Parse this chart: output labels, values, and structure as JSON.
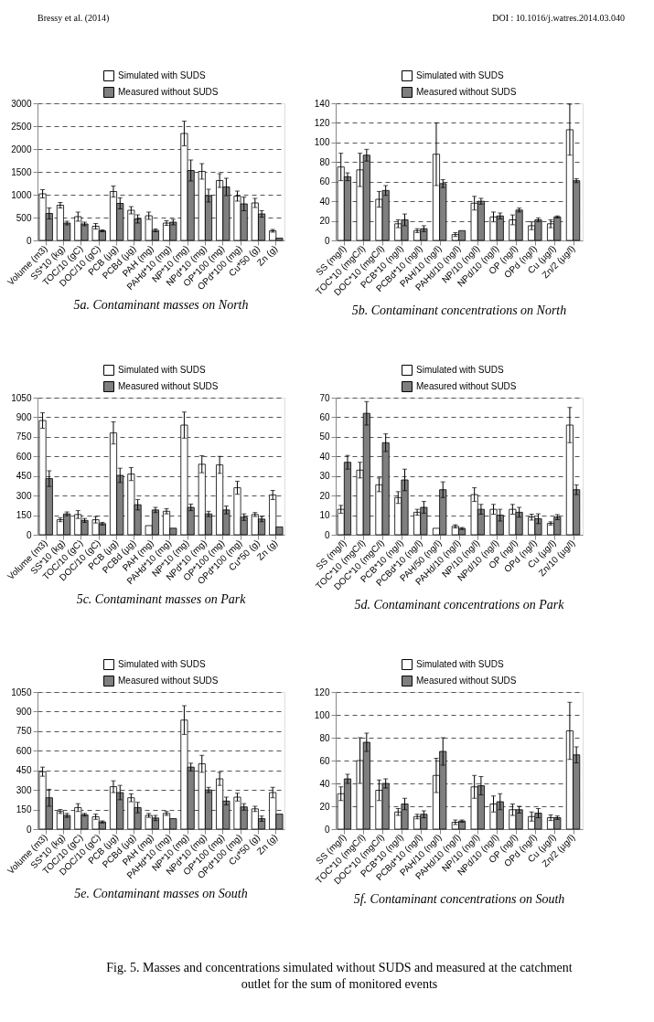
{
  "chart_data": [
    {
      "type": "bar",
      "title": "5a. Contaminant masses on North",
      "annotations": [
        "Bressy et al. (2014)",
        "DOI : 10.1016/j.watres.2014.03.040"
      ],
      "categories": [
        "Volume (m3)",
        "SS*10 (kg)",
        "TOC/10 (gC)",
        "DOC/10 (gC)",
        "PCB (µg)",
        "PCBd (µg)",
        "PAH (mg)",
        "PAHd*10 (mg)",
        "NP*10 (mg)",
        "NPd*10 (mg)",
        "OP*100 (mg)",
        "OPd*100 (mg)",
        "Cu*50 (g)",
        "Zn (g)"
      ],
      "ylim": [
        0,
        3000
      ],
      "yticks": [
        0,
        500,
        1000,
        1500,
        2000,
        2500,
        3000
      ],
      "grid": "y",
      "legend": "top",
      "series": [
        {
          "name": "Simulated with SUDS",
          "color": "#ffffff",
          "values": [
            1020,
            770,
            520,
            310,
            1070,
            660,
            540,
            380,
            2340,
            1510,
            1310,
            970,
            820,
            210
          ],
          "errors": [
            90,
            60,
            100,
            60,
            120,
            80,
            80,
            50,
            270,
            170,
            150,
            110,
            100,
            30
          ]
        },
        {
          "name": "Measured without SUDS",
          "color": "#7f7f7f",
          "values": [
            590,
            380,
            360,
            210,
            810,
            470,
            220,
            400,
            1530,
            980,
            1170,
            800,
            580,
            50
          ],
          "errors": [
            120,
            40,
            40,
            20,
            120,
            90,
            30,
            60,
            230,
            140,
            190,
            150,
            70,
            null
          ]
        }
      ]
    },
    {
      "type": "bar",
      "title": "5b. Contaminant concentrations on North",
      "categories": [
        "SS (mg/l)",
        "TOC*10 (mgC/l)",
        "DOC*10 (mgC/l)",
        "PCB*10 (ng/l)",
        "PCBd*10 (ng/l)",
        "PAH/10 (ng/l)",
        "PAHd/10 (ng/l)",
        "NP/10 (ng/l)",
        "NPd/10 (ng/l)",
        "OP (ng/l)",
        "OPd (ng/l)",
        "Cu (µg/l)",
        "Zn/2 (µg/l)"
      ],
      "ylim": [
        0,
        140
      ],
      "yticks": [
        0,
        20,
        40,
        60,
        80,
        100,
        120,
        140
      ],
      "grid": "y",
      "legend": "top",
      "series": [
        {
          "name": "Simulated with SUDS",
          "color": "#ffffff",
          "values": [
            75,
            72,
            42,
            17,
            10,
            88,
            6,
            38,
            24,
            21,
            15,
            17,
            113
          ],
          "errors": [
            14,
            17,
            8,
            4,
            2,
            32,
            2,
            7,
            5,
            5,
            4,
            4,
            26
          ]
        },
        {
          "name": "Measured without SUDS",
          "color": "#7f7f7f",
          "values": [
            65,
            87,
            51,
            21,
            12,
            58,
            10,
            40,
            25,
            31,
            21,
            24,
            61
          ],
          "errors": [
            4,
            6,
            5,
            6,
            3,
            4,
            null,
            3,
            3,
            2,
            2,
            1,
            2
          ]
        }
      ]
    },
    {
      "type": "bar",
      "title": "5c. Contaminant masses on Park",
      "categories": [
        "Volume (m3)",
        "SS*10 (kg)",
        "TOC/10 (gC)",
        "DOC/10 (gC)",
        "PCB (µg)",
        "PCBd (µg)",
        "PAH (mg)",
        "PAHd*10 (mg)",
        "NP*10 (mg)",
        "NPd*10 (mg)",
        "OP*100 (mg)",
        "OPd*100 (mg)",
        "Cu*50 (g)",
        "Zn (g)"
      ],
      "ylim": [
        0,
        1050
      ],
      "yticks": [
        0,
        150,
        300,
        450,
        600,
        750,
        900,
        1050
      ],
      "grid": "y",
      "legend": "top",
      "series": [
        {
          "name": "Simulated with SUDS",
          "color": "#ffffff",
          "values": [
            875,
            115,
            155,
            115,
            780,
            465,
            70,
            180,
            840,
            540,
            535,
            360,
            155,
            305
          ],
          "errors": [
            60,
            15,
            30,
            25,
            85,
            50,
            null,
            20,
            100,
            65,
            65,
            50,
            15,
            35
          ]
        },
        {
          "name": "Measured without SUDS",
          "color": "#7f7f7f",
          "values": [
            430,
            160,
            110,
            85,
            455,
            230,
            190,
            50,
            210,
            160,
            190,
            135,
            120,
            60
          ],
          "errors": [
            60,
            15,
            15,
            10,
            55,
            40,
            20,
            null,
            25,
            20,
            30,
            25,
            20,
            null
          ]
        }
      ]
    },
    {
      "type": "bar",
      "title": "5d. Contaminant concentrations on Park",
      "categories": [
        "SS (mg/l)",
        "TOC*10 (mgC/l)",
        "DOC*10 (mgC/l)",
        "PCB*10 (ng/l)",
        "PCBd*10 (ng/l)",
        "PAH/50 (ng/l)",
        "PAHd/10 (ng/l)",
        "NP/10 (ng/l)",
        "NPd/10 (ng/l)",
        "OP (ng/l)",
        "OPd (ng/l)",
        "Cu (µg/l)",
        "Zn/10 (µg/l)"
      ],
      "ylim": [
        0,
        70
      ],
      "yticks": [
        0,
        10,
        20,
        30,
        40,
        50,
        60,
        70
      ],
      "grid": "y",
      "legend": "top",
      "series": [
        {
          "name": "Simulated with SUDS",
          "color": "#ffffff",
          "values": [
            13,
            33,
            25.5,
            19,
            11.5,
            3.3,
            4.3,
            20.5,
            13,
            13,
            9,
            5.8,
            56
          ],
          "errors": [
            2,
            4,
            3.5,
            3,
            1.5,
            null,
            0.8,
            3.5,
            2.5,
            2.5,
            1.5,
            0.8,
            9
          ]
        },
        {
          "name": "Measured without SUDS",
          "color": "#7f7f7f",
          "values": [
            37,
            62,
            47,
            28,
            14,
            23,
            3.2,
            13,
            10,
            11.5,
            8.2,
            9,
            23
          ],
          "errors": [
            3.5,
            6,
            4.5,
            5.5,
            3,
            4,
            0.5,
            2.5,
            3,
            2.5,
            2.5,
            1.3,
            2.5
          ]
        }
      ]
    },
    {
      "type": "bar",
      "title": "5e. Contaminant masses on South",
      "categories": [
        "Volume (m3)",
        "SS*10 (kg)",
        "TOC/10 (gC)",
        "DOC/10 (gC)",
        "PCB (µg)",
        "PCBd (µg)",
        "PAH (mg)",
        "PAHd*10 (mg)",
        "NP*10 (mg)",
        "NPd*10 (mg)",
        "OP*100 (mg)",
        "OPd*100 (mg)",
        "Cu*50 (g)",
        "Zn (g)"
      ],
      "ylim": [
        0,
        1050
      ],
      "yticks": [
        0,
        150,
        300,
        450,
        600,
        750,
        900,
        1050
      ],
      "grid": "y",
      "legend": "top",
      "series": [
        {
          "name": "Simulated with SUDS",
          "color": "#ffffff",
          "values": [
            440,
            135,
            165,
            95,
            325,
            240,
            105,
            120,
            835,
            500,
            385,
            245,
            155,
            280
          ],
          "errors": [
            35,
            15,
            30,
            20,
            45,
            30,
            15,
            15,
            110,
            65,
            50,
            30,
            20,
            40
          ]
        },
        {
          "name": "Measured without SUDS",
          "color": "#7f7f7f",
          "values": [
            240,
            105,
            110,
            55,
            280,
            165,
            85,
            80,
            475,
            300,
            215,
            170,
            80,
            115
          ],
          "errors": [
            65,
            15,
            10,
            8,
            55,
            40,
            20,
            null,
            30,
            20,
            30,
            25,
            20,
            null
          ]
        }
      ]
    },
    {
      "type": "bar",
      "title": "5f. Contaminant concentrations on South",
      "annotations": [
        "Fig. 5. Masses and concentrations simulated without SUDS and measured at the catchment outlet for the sum of monitored events"
      ],
      "categories": [
        "SS (mg/l)",
        "TOC*10 (mgC/l)",
        "DOC*10 (mgC/l)",
        "PCB*10 (ng/l)",
        "PCBd*10 (ng/l)",
        "PAH/10 (ng/l)",
        "PAHd/10 (ng/l)",
        "NP/10 (ng/l)",
        "NPd/10 (ng/l)",
        "OP (ng/l)",
        "OPd (ng/l)",
        "Cu (µg/l)",
        "Zn/2 (µg/l)"
      ],
      "ylim": [
        0,
        120
      ],
      "yticks": [
        0,
        20,
        40,
        60,
        80,
        100,
        120
      ],
      "grid": "y",
      "legend": "top",
      "series": [
        {
          "name": "Simulated with SUDS",
          "color": "#ffffff",
          "values": [
            31,
            60,
            34,
            15,
            11,
            47,
            6,
            37,
            22,
            17,
            11,
            10,
            86
          ],
          "errors": [
            6,
            20,
            9,
            3,
            2,
            15,
            2,
            10,
            7,
            5,
            4,
            2.5,
            25
          ]
        },
        {
          "name": "Measured without SUDS",
          "color": "#7f7f7f",
          "values": [
            44,
            76,
            40,
            22,
            13,
            68,
            7,
            38,
            24,
            17,
            14,
            10,
            65
          ],
          "errors": [
            4,
            8,
            4,
            5,
            3,
            12,
            1,
            8,
            7,
            3,
            4,
            1.5,
            7
          ]
        }
      ]
    }
  ]
}
